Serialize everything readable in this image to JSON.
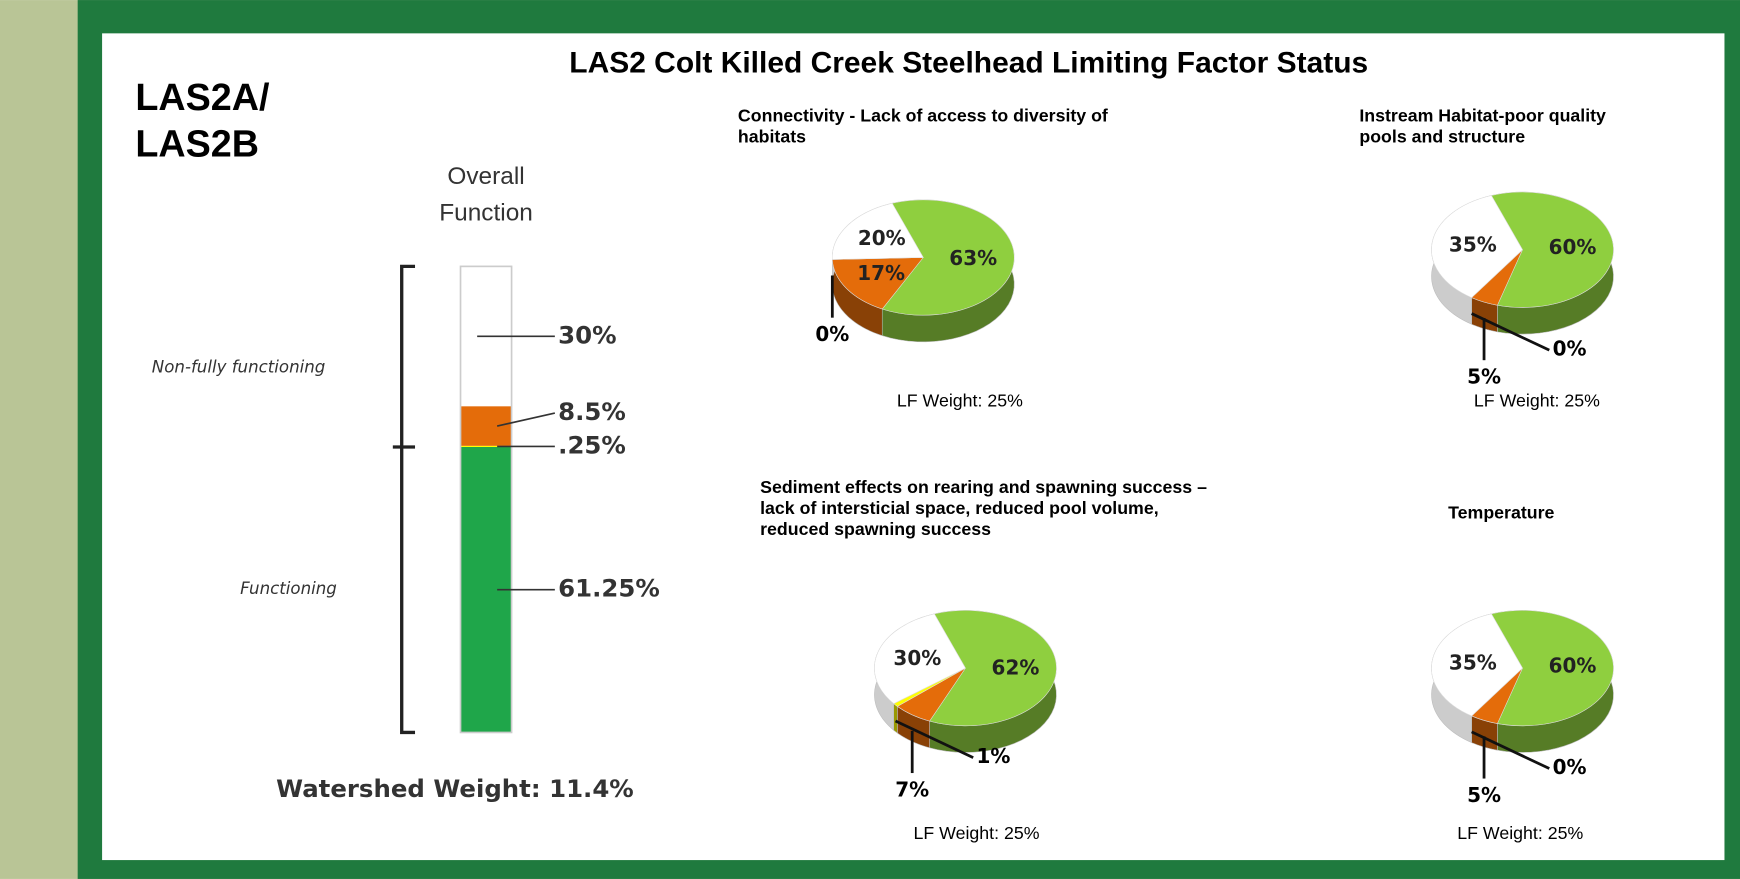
{
  "header": {
    "label_lines": [
      "LAS2A/",
      "LAS2B"
    ],
    "title": "LAS2 Colt Killed Creek Steelhead Limiting Factor Status"
  },
  "chart_data": [
    {
      "type": "stacked_bar",
      "title": [
        "Overall",
        "Function"
      ],
      "values": [
        30,
        8.5,
        0.25,
        61.25
      ],
      "value_labels": [
        "30%",
        "8.5%",
        ".25%",
        "61.25%"
      ],
      "colors": [
        "#ffffff",
        "#e46c0a",
        "#ffff00",
        "#1fa64a"
      ],
      "groups": [
        "Non-fully functioning",
        "Functioning"
      ],
      "footer": "Watershed Weight:  11.4%"
    },
    {
      "type": "pie",
      "title": [
        "Connectivity - Lack of access to diversity of",
        "habitats"
      ],
      "values": [
        63,
        17,
        0,
        20
      ],
      "value_labels": [
        "63%",
        "17%",
        "0%",
        "20%"
      ],
      "colors": [
        "#8fcf3f",
        "#e46c0a",
        "#ffff00",
        "#ffffff"
      ],
      "note": "LF Weight:  25%"
    },
    {
      "type": "pie",
      "title": [
        "Instream Habitat-poor quality",
        "pools and structure"
      ],
      "values": [
        60,
        5,
        0,
        35
      ],
      "value_labels": [
        "60%",
        "5%",
        "0%",
        "35%"
      ],
      "colors": [
        "#8fcf3f",
        "#e46c0a",
        "#ffff00",
        "#ffffff"
      ],
      "note": "LF Weight:  25%"
    },
    {
      "type": "pie",
      "title": [
        "Sediment effects on rearing and spawning success –",
        "lack of intersticial space, reduced pool volume,",
        "reduced spawning success"
      ],
      "values": [
        62,
        7,
        1,
        30
      ],
      "value_labels": [
        "62%",
        "7%",
        "1%",
        "30%"
      ],
      "colors": [
        "#8fcf3f",
        "#e46c0a",
        "#ffff00",
        "#ffffff"
      ],
      "note": "LF Weight:  25%"
    },
    {
      "type": "pie",
      "title": [
        "Temperature"
      ],
      "values": [
        60,
        5,
        0,
        35
      ],
      "value_labels": [
        "60%",
        "5%",
        "0%",
        "35%"
      ],
      "colors": [
        "#8fcf3f",
        "#e46c0a",
        "#ffff00",
        "#ffffff"
      ],
      "note": "LF Weight:  25%"
    }
  ]
}
